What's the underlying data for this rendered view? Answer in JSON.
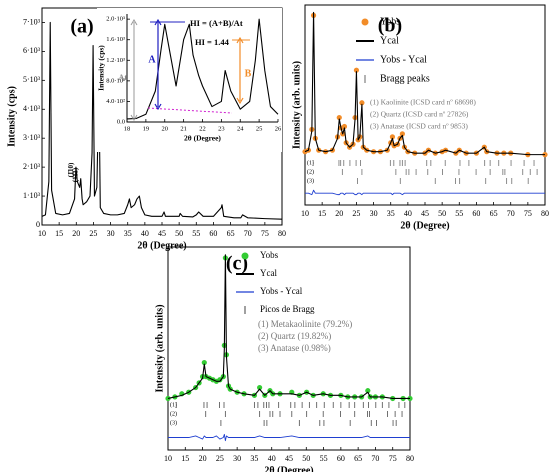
{
  "chart_data": [
    {
      "type": "line",
      "label": "(a)",
      "xlabel": "2θ (Degree)",
      "ylabel": "Intensity (cps)",
      "xlim": [
        10,
        80
      ],
      "xticks": [
        10,
        15,
        20,
        25,
        30,
        35,
        40,
        45,
        50,
        55,
        60,
        65,
        70,
        75,
        80
      ],
      "ylim": [
        0,
        7500
      ],
      "yticks": [
        0,
        {
          "value": 1000,
          "label": "1·10³"
        },
        {
          "value": 2000,
          "label": "2·10³"
        },
        {
          "value": 3000,
          "label": "3·10³"
        },
        {
          "value": 4000,
          "label": "4·10³"
        },
        {
          "value": 5000,
          "label": "5·10³"
        },
        {
          "value": 6000,
          "label": "6·10³"
        },
        {
          "value": 7000,
          "label": "7·10³"
        }
      ],
      "annotations": [
        "(1̄10)",
        "(11̄1)"
      ],
      "x": [
        10,
        11,
        12,
        12.4,
        12.8,
        14,
        16,
        18,
        19.5,
        19.9,
        20.3,
        21,
        21.3,
        21.7,
        22,
        23,
        24,
        24.6,
        24.9,
        25.3,
        26,
        26.6,
        27,
        28,
        30,
        32,
        34,
        35,
        35.5,
        36,
        37,
        37.7,
        38.4,
        39,
        40,
        42,
        45,
        45.6,
        46,
        48,
        50,
        50.3,
        51,
        54,
        55,
        55.7,
        57,
        60,
        62.3,
        62.5,
        63,
        66,
        68,
        68.5,
        70,
        75,
        80
      ],
      "series": [
        {
          "style": "line",
          "color": "#000000",
          "values": [
            300,
            350,
            1500,
            7000,
            1200,
            400,
            350,
            400,
            900,
            2000,
            1500,
            1300,
            1600,
            900,
            700,
            800,
            1000,
            2500,
            6200,
            1000,
            1300,
            4800,
            600,
            400,
            350,
            350,
            400,
            700,
            900,
            600,
            700,
            900,
            1000,
            600,
            350,
            300,
            300,
            450,
            300,
            300,
            300,
            400,
            300,
            280,
            350,
            450,
            300,
            300,
            600,
            700,
            300,
            250,
            250,
            350,
            250,
            220,
            200
          ]
        }
      ]
    },
    {
      "type": "line",
      "xlabel": "2θ (Degree)",
      "ylabel": "Intensity (cps)",
      "xlim": [
        18,
        26
      ],
      "xticks": [
        18,
        19,
        20,
        21,
        22,
        23,
        24,
        25,
        26
      ],
      "ylim": [
        0,
        2100
      ],
      "yticks": [
        {
          "value": 0,
          "label": "0.0"
        },
        {
          "value": 400,
          "label": "4.0·10²"
        },
        {
          "value": 800,
          "label": "8.0·10²"
        },
        {
          "value": 1200,
          "label": "1.2·10³"
        },
        {
          "value": 1600,
          "label": "1.6·10³"
        },
        {
          "value": 2000,
          "label": "2.0·10³"
        }
      ],
      "annotations": [
        "HI = (A+B)/At",
        "HI = 1.44",
        "A",
        "B",
        "At"
      ],
      "x": [
        18,
        18.5,
        19,
        19.5,
        19.8,
        20,
        20.3,
        20.6,
        21,
        21.3,
        21.5,
        21.8,
        22,
        22.5,
        23,
        23.2,
        23.5,
        24,
        24.5,
        24.8,
        25,
        25.3,
        25.6,
        26
      ],
      "series": [
        {
          "style": "line",
          "color": "#000000",
          "values": [
            60,
            70,
            150,
            600,
            1400,
            1900,
            1300,
            700,
            1600,
            1900,
            1300,
            900,
            700,
            300,
            400,
            1000,
            600,
            250,
            400,
            1200,
            2000,
            1000,
            300,
            150
          ]
        }
      ]
    },
    {
      "type": "line",
      "label": "(b)",
      "xlabel": "2θ (Degree)",
      "ylabel": "Intensity (arb. units)",
      "xlim": [
        10,
        80
      ],
      "xticks": [
        10,
        15,
        20,
        25,
        30,
        35,
        40,
        45,
        50,
        55,
        60,
        65,
        70,
        75,
        80
      ],
      "ylim": [
        -30,
        105
      ],
      "x": [
        10,
        11,
        12,
        12.5,
        13,
        14,
        16,
        18,
        19.5,
        20,
        20.5,
        21,
        21.5,
        22,
        23,
        24,
        24.6,
        25,
        25.5,
        26,
        26.6,
        27,
        28,
        30,
        32,
        34,
        35,
        35.5,
        36,
        37,
        37.7,
        38.4,
        39,
        40,
        42,
        45,
        46,
        48,
        50,
        51,
        54,
        55,
        57,
        60,
        62.3,
        63,
        66,
        68,
        70,
        75,
        80
      ],
      "series": [
        {
          "name": "Yobs",
          "style": "points",
          "color": "#f28c28",
          "values": [
            6,
            7,
            21,
            98,
            15,
            7,
            6,
            7,
            16,
            29,
            22,
            18,
            23,
            12,
            9,
            11,
            29,
            61,
            14,
            16,
            39,
            9,
            7,
            6,
            6,
            7,
            12,
            16,
            10,
            11,
            15,
            18,
            9,
            6,
            5,
            5,
            7,
            5,
            6,
            7,
            5,
            7,
            5,
            5,
            9,
            6,
            5,
            5,
            5,
            4,
            4
          ]
        },
        {
          "name": "Ycal",
          "style": "line",
          "color": "#000000",
          "values": [
            6,
            7,
            20,
            100,
            15,
            7,
            6,
            7,
            15,
            28,
            22,
            18,
            22,
            12,
            9,
            11,
            28,
            60,
            14,
            16,
            38,
            9,
            7,
            6,
            6,
            7,
            12,
            15,
            10,
            11,
            15,
            17,
            9,
            6,
            5,
            5,
            7,
            5,
            6,
            7,
            5,
            7,
            5,
            5,
            9,
            6,
            5,
            5,
            5,
            4,
            4
          ]
        },
        {
          "name": "Yobs - Ycal",
          "style": "line",
          "color": "#1f3fd0",
          "values": [
            -22,
            -22,
            -23,
            -20,
            -22,
            -22,
            -22,
            -22,
            -23,
            -23,
            -22,
            -22,
            -23,
            -22,
            -22,
            -22,
            -23,
            -23,
            -22,
            -22,
            -23,
            -22,
            -22,
            -22,
            -22,
            -22,
            -22,
            -23,
            -22,
            -22,
            -22,
            -23,
            -22,
            -22,
            -22,
            -22,
            -22,
            -22,
            -22,
            -22,
            -22,
            -22,
            -22,
            -22,
            -22,
            -22,
            -22,
            -22,
            -22,
            -22,
            -22
          ]
        }
      ],
      "bragg_name": "Bragg peaks",
      "bragg_color": "#808080",
      "bragg": [
        {
          "label": "(1)",
          "positions": [
            12.4,
            19.9,
            20.4,
            21.3,
            23.1,
            24.9,
            26.2,
            34.9,
            35.9,
            37.7,
            38.4,
            39.2,
            45.5,
            46.7,
            50.9,
            55.2,
            57.8,
            62.4,
            64,
            66.5,
            70.1,
            73.9,
            76.8
          ]
        },
        {
          "label": "(2)",
          "positions": [
            20.9,
            26.6,
            36.5,
            39.5,
            40.3,
            42.4,
            45.8,
            50.1,
            54.9,
            59.9,
            64,
            67.7,
            68.3,
            73.5,
            75.7,
            77.7
          ]
        },
        {
          "label": "(3)",
          "positions": [
            25.3,
            37.8,
            48,
            53.9,
            55.1,
            62.7,
            68.8,
            70.3,
            75.1
          ]
        }
      ],
      "phases": [
        "(1) Kaolinite (ICSD card nº 68698)",
        "(2) Quartz (ICSD card nº 27826)",
        "(3) Anatase (ICSD card nº 9853)"
      ]
    },
    {
      "type": "line",
      "label": "(c)",
      "xlabel": "2θ (Degree)",
      "ylabel": "Intensity (arb. units)",
      "xlim": [
        10,
        80
      ],
      "xticks": [
        10,
        15,
        20,
        25,
        30,
        35,
        40,
        45,
        50,
        55,
        60,
        65,
        70,
        75,
        80
      ],
      "ylim": [
        -25,
        105
      ],
      "x": [
        10,
        12,
        14,
        16,
        18,
        19,
        20,
        20.5,
        21,
        22,
        23,
        24,
        25,
        26,
        26.3,
        26.6,
        26.9,
        27.5,
        28,
        30,
        32,
        35,
        36.5,
        38,
        39.5,
        40.3,
        42.4,
        45.8,
        48,
        50.1,
        52,
        54.9,
        57,
        60,
        62,
        64,
        66,
        67.8,
        68.5,
        70,
        72,
        75,
        78,
        80
      ],
      "series": [
        {
          "name": "Yobs",
          "style": "points",
          "color": "#33cc33",
          "values": [
            8,
            9,
            11,
            12,
            15,
            18,
            22,
            31,
            22,
            21,
            20,
            19,
            20,
            22,
            42,
            98,
            36,
            16,
            14,
            12,
            11,
            10,
            15,
            10,
            13,
            11,
            11,
            12,
            10,
            12,
            10,
            11,
            10,
            10,
            9,
            9,
            9,
            13,
            9,
            9,
            9,
            8,
            8,
            8
          ]
        },
        {
          "name": "Ycal",
          "style": "line",
          "color": "#000000",
          "values": [
            8,
            9,
            10,
            12,
            15,
            18,
            21,
            30,
            22,
            21,
            20,
            19,
            19,
            22,
            40,
            100,
            35,
            16,
            14,
            12,
            11,
            10,
            14,
            10,
            13,
            11,
            11,
            11,
            10,
            12,
            10,
            11,
            10,
            10,
            9,
            9,
            9,
            12,
            9,
            9,
            9,
            8,
            8,
            8
          ]
        },
        {
          "name": "Yobs - Ycal",
          "style": "line",
          "color": "#1f3fd0",
          "values": [
            -17,
            -17,
            -17,
            -17,
            -16,
            -17,
            -18,
            -16,
            -17,
            -17,
            -17,
            -16,
            -18,
            -17,
            -15,
            -19,
            -16,
            -17,
            -17,
            -17,
            -17,
            -17,
            -16,
            -17,
            -17,
            -17,
            -17,
            -16,
            -17,
            -17,
            -17,
            -17,
            -17,
            -17,
            -17,
            -17,
            -17,
            -16,
            -17,
            -17,
            -17,
            -17,
            -17,
            -17
          ]
        }
      ],
      "bragg_name": "Picos de Bragg",
      "bragg_color": "#606060",
      "bragg": [
        {
          "label": "(1)",
          "positions": [
            12.4,
            20.4,
            21.3,
            24.9,
            26.2,
            35,
            36,
            37.7,
            38.5,
            39.2,
            42,
            45.5,
            46.7,
            48.8,
            50.9,
            53,
            55.2,
            57.8,
            60,
            62.4,
            64,
            66.5,
            68,
            70.1,
            72,
            73.9,
            76.8,
            78.5
          ]
        },
        {
          "label": "(2)",
          "positions": [
            20.9,
            26.6,
            36.5,
            39.5,
            40.3,
            42.4,
            45.8,
            50.1,
            54.9,
            59.9,
            64,
            67.7,
            68.3,
            73.5,
            75.7,
            77.7
          ]
        },
        {
          "label": "(3)",
          "positions": [
            25.3,
            37.8,
            38.6,
            48,
            53.9,
            55.1,
            62.7,
            68.8,
            70.3,
            75.1,
            76
          ]
        }
      ],
      "phases": [
        "(1) Metakaolinite (79.2%)",
        "(2) Quartz (19.82%)",
        "(3) Anatase (0.98%)"
      ]
    }
  ]
}
